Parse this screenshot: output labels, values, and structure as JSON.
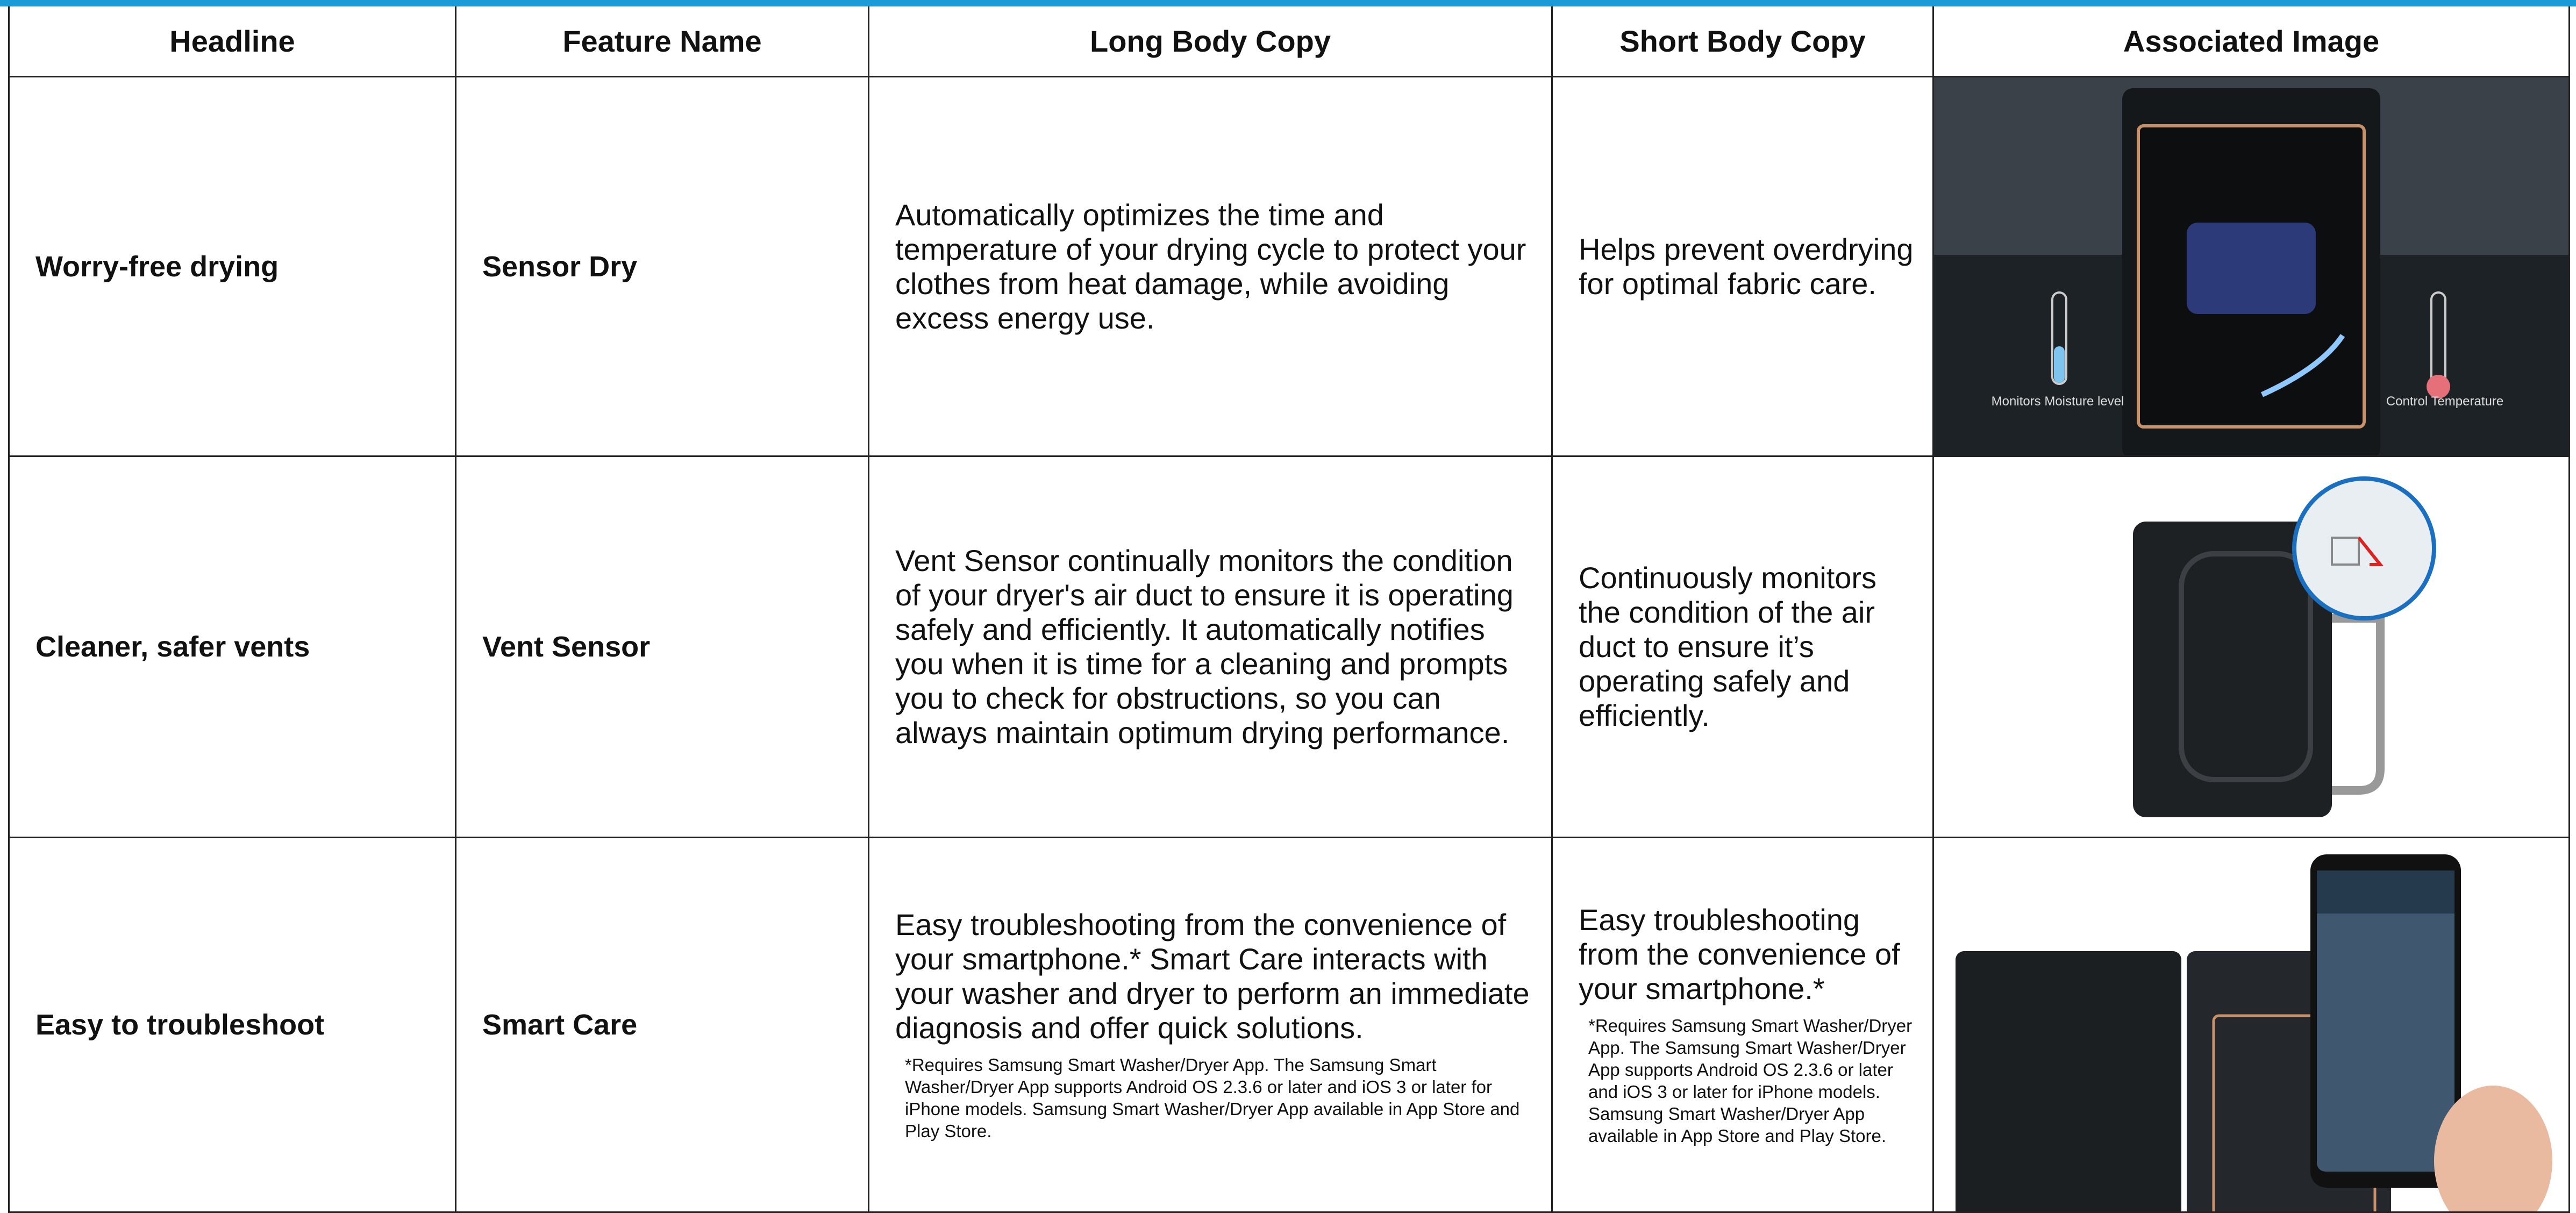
{
  "table": {
    "headers": [
      "Headline",
      "Feature Name",
      "Long Body Copy",
      "Short Body Copy",
      "Associated Image"
    ],
    "rows": [
      {
        "headline": "Worry-free drying",
        "feature": "Sensor Dry",
        "long": "Automatically optimizes the time and temperature of your drying cycle to protect your clothes from heat damage, while avoiding excess energy use.",
        "short": "Helps prevent overdrying for optimal fabric care.",
        "image_labels": [
          "Monitors Moisture level",
          "Control Temperature"
        ]
      },
      {
        "headline": "Cleaner, safer vents",
        "feature": "Vent Sensor",
        "long": "Vent Sensor continually monitors the condition of your dryer's air duct to ensure it is operating safely and efficiently. It automatically notifies you when it is time for a cleaning and prompts you to check for obstructions, so you can always maintain optimum drying performance.",
        "short": "Continuously monitors the condition of the air duct to ensure it’s operating safely and efficiently."
      },
      {
        "headline": "Easy to troubleshoot",
        "feature": "Smart Care",
        "long": "Easy troubleshooting from the convenience of your smartphone.* Smart Care interacts with your washer and dryer to perform an immediate diagnosis and offer quick solutions.",
        "long_note": "*Requires Samsung Smart Washer/Dryer App. The Samsung Smart Washer/Dryer App supports Android OS 2.3.6 or later and iOS 3 or later for iPhone models. Samsung Smart Washer/Dryer App available in App Store and Play Store.",
        "short": "Easy troubleshooting from the convenience of your smartphone.*",
        "short_note": "*Requires Samsung Smart Washer/Dryer App. The Samsung Smart Washer/Dryer App supports Android OS 2.3.6 or later and iOS 3 or later for iPhone models. Samsung Smart Washer/Dryer App available in App Store and Play Store."
      }
    ]
  }
}
